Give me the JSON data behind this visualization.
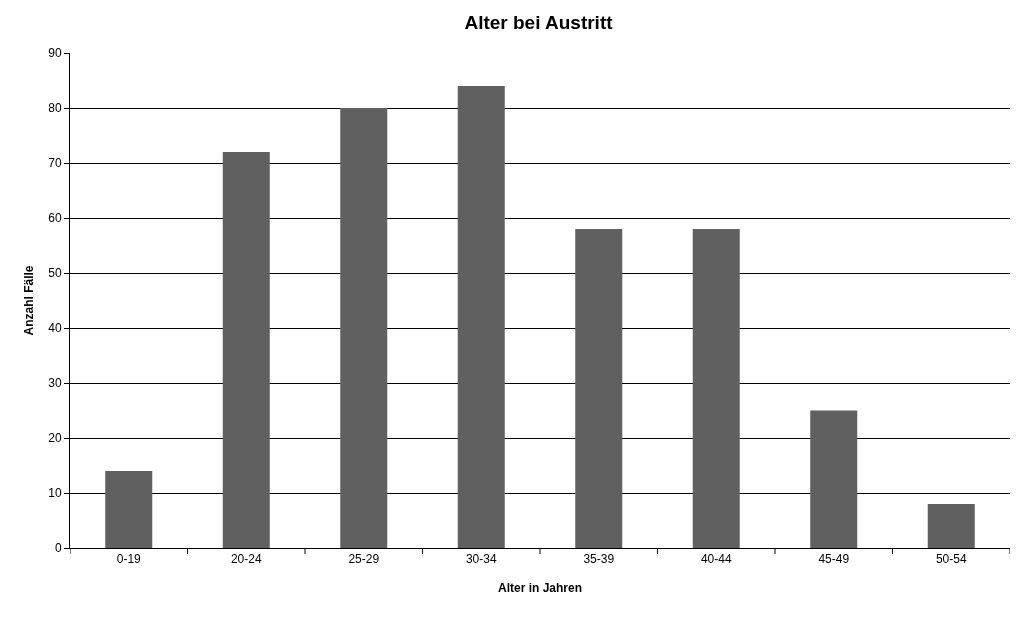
{
  "chart_data": {
    "type": "bar",
    "title": "Alter bei Austritt",
    "xlabel": "Alter in Jahren",
    "ylabel": "Anzahl Fälle",
    "categories": [
      "0-19",
      "20-24",
      "25-29",
      "30-34",
      "35-39",
      "40-44",
      "45-49",
      "50-54"
    ],
    "values": [
      14,
      72,
      80,
      84,
      58,
      58,
      25,
      8
    ],
    "color": "#606060",
    "ylim": [
      0,
      90
    ],
    "yticks": [
      0,
      10,
      20,
      30,
      40,
      50,
      60,
      70,
      80,
      90
    ],
    "grid": "y",
    "legend": false
  }
}
